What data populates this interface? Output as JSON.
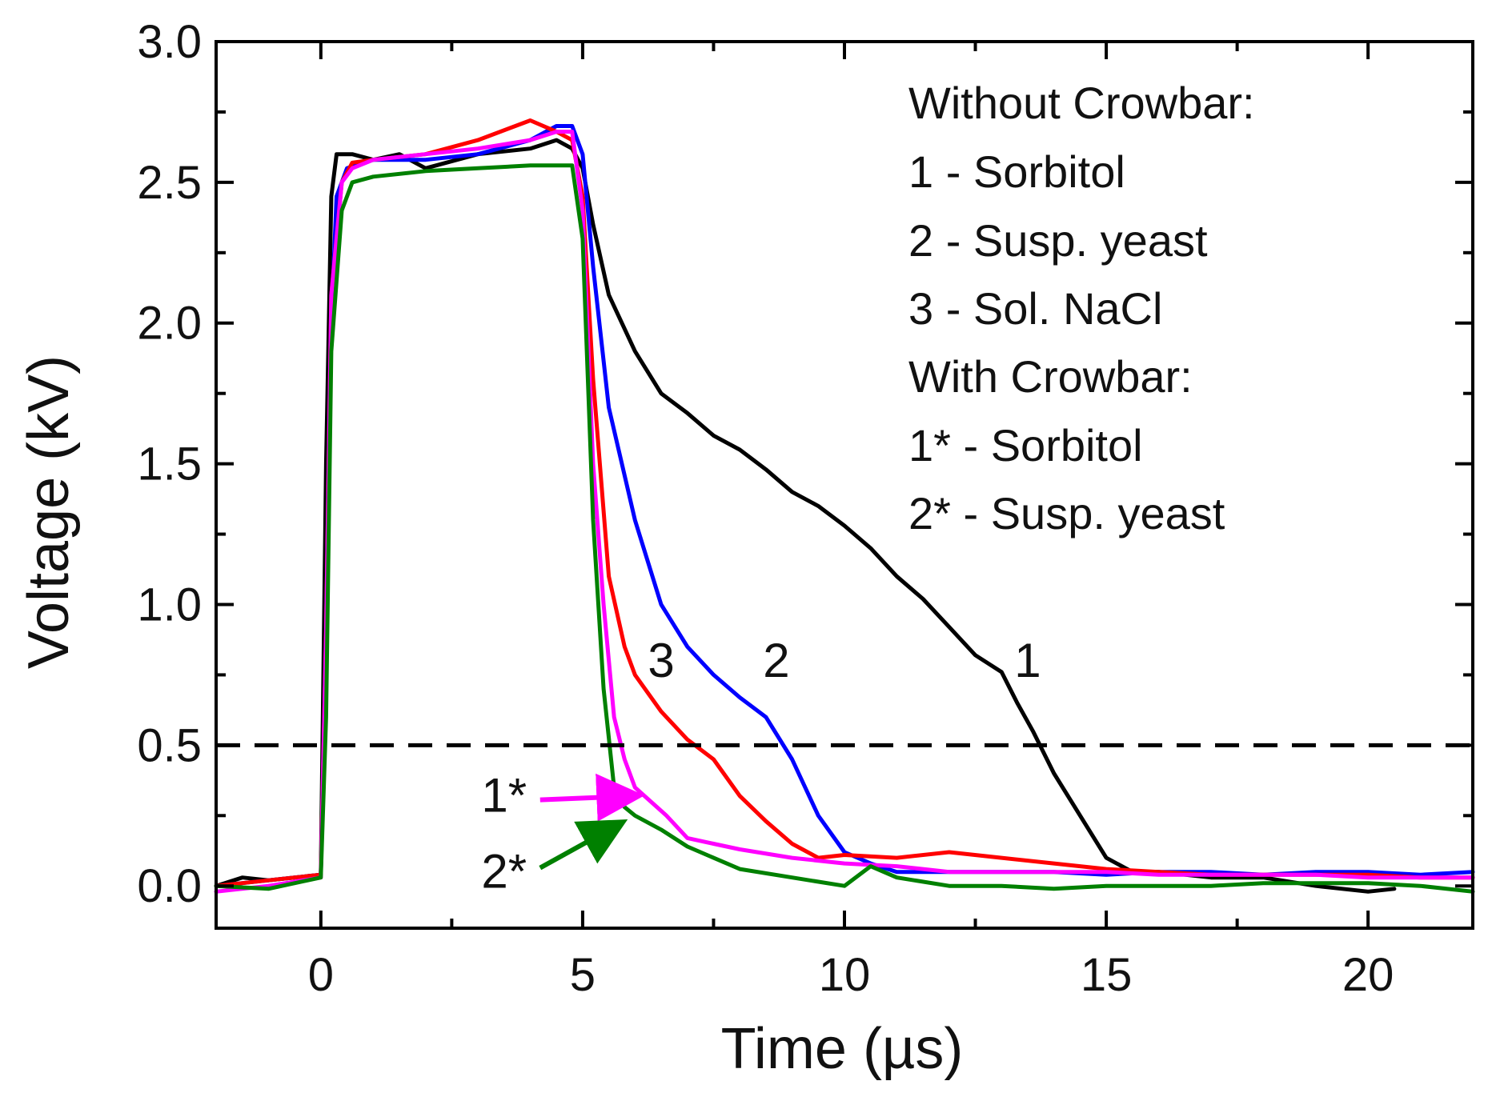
{
  "chart_data": {
    "type": "line",
    "title": "",
    "xlabel": "Time (µs)",
    "ylabel": "Voltage (kV)",
    "xlim": [
      -2,
      22
    ],
    "ylim": [
      -0.15,
      3.0
    ],
    "xticks": [
      0,
      5,
      10,
      15,
      20
    ],
    "xtick_labels": [
      "0",
      "5",
      "10",
      "15",
      "20"
    ],
    "yticks": [
      0.0,
      0.5,
      1.0,
      1.5,
      2.0,
      2.5,
      3.0
    ],
    "ytick_labels": [
      "0.0",
      "0.5",
      "1.0",
      "1.5",
      "2.0",
      "2.5",
      "3.0"
    ],
    "grid": false,
    "reference_line": {
      "y": 0.5,
      "style": "dashed",
      "color": "#000000"
    },
    "legend": {
      "placement": "top-right",
      "lines": [
        "Without Crowbar:",
        "1 - Sorbitol",
        "2 - Susp. yeast",
        "3 -  Sol. NaCl",
        "With Crowbar:",
        "1* - Sorbitol",
        "2* - Susp. yeast"
      ]
    },
    "series": [
      {
        "name": "1 - Sorbitol (without crowbar)",
        "color": "#000000",
        "x": [
          -2,
          -1.5,
          -1,
          -0.5,
          0,
          0.1,
          0.2,
          0.3,
          0.6,
          1,
          1.5,
          2,
          3,
          4,
          4.5,
          4.8,
          5,
          5.2,
          5.5,
          6,
          6.5,
          7,
          7.5,
          8,
          8.5,
          9,
          9.5,
          10,
          10.5,
          11,
          11.5,
          12,
          12.5,
          13,
          13.3,
          13.6,
          14,
          14.5,
          15,
          15.5,
          16,
          17,
          18,
          19,
          20,
          20.5
        ],
        "y": [
          0.0,
          0.03,
          0.02,
          0.03,
          0.04,
          1.5,
          2.45,
          2.6,
          2.6,
          2.58,
          2.6,
          2.55,
          2.6,
          2.62,
          2.65,
          2.62,
          2.55,
          2.35,
          2.1,
          1.9,
          1.75,
          1.68,
          1.6,
          1.55,
          1.48,
          1.4,
          1.35,
          1.28,
          1.2,
          1.1,
          1.02,
          0.92,
          0.82,
          0.76,
          0.65,
          0.55,
          0.4,
          0.25,
          0.1,
          0.05,
          0.05,
          0.03,
          0.03,
          0.0,
          -0.02,
          -0.01
        ]
      },
      {
        "name": "2 - Susp. yeast (without crowbar)",
        "color": "#0000ff",
        "x": [
          -2,
          -1,
          0,
          0.1,
          0.2,
          0.3,
          0.5,
          1,
          2,
          3,
          4,
          4.5,
          4.8,
          5,
          5.2,
          5.5,
          6,
          6.5,
          7,
          7.5,
          8,
          8.5,
          9,
          9.5,
          10,
          10.5,
          11,
          12,
          13,
          14,
          15,
          16,
          17,
          18,
          19,
          20,
          21,
          22
        ],
        "y": [
          0.0,
          0.02,
          0.04,
          0.8,
          2.0,
          2.45,
          2.55,
          2.58,
          2.58,
          2.6,
          2.65,
          2.7,
          2.7,
          2.6,
          2.2,
          1.7,
          1.3,
          1.0,
          0.85,
          0.75,
          0.67,
          0.6,
          0.45,
          0.25,
          0.12,
          0.08,
          0.05,
          0.05,
          0.05,
          0.05,
          0.04,
          0.05,
          0.05,
          0.04,
          0.05,
          0.05,
          0.04,
          0.05
        ]
      },
      {
        "name": "3 - Sol. NaCl (without crowbar)",
        "color": "#ff0000",
        "x": [
          -2,
          -1,
          0,
          0.1,
          0.2,
          0.4,
          0.6,
          1,
          2,
          3,
          4,
          4.5,
          4.8,
          5,
          5.2,
          5.5,
          5.8,
          6,
          6.5,
          7,
          7.5,
          8,
          8.5,
          9,
          9.5,
          10,
          11,
          12,
          13,
          14,
          15,
          16,
          17,
          18,
          19,
          20,
          21,
          22
        ],
        "y": [
          0.0,
          0.02,
          0.04,
          0.9,
          2.1,
          2.5,
          2.57,
          2.58,
          2.6,
          2.65,
          2.72,
          2.68,
          2.65,
          2.45,
          1.8,
          1.1,
          0.85,
          0.75,
          0.62,
          0.52,
          0.45,
          0.32,
          0.23,
          0.15,
          0.1,
          0.11,
          0.1,
          0.12,
          0.1,
          0.08,
          0.06,
          0.05,
          0.04,
          0.04,
          0.04,
          0.04,
          0.03,
          0.03
        ]
      },
      {
        "name": "1* - Sorbitol (with crowbar)",
        "color": "#ff00ff",
        "x": [
          -2,
          -1,
          0,
          0.1,
          0.2,
          0.4,
          0.6,
          1,
          2,
          3,
          4,
          4.5,
          4.8,
          5,
          5.2,
          5.4,
          5.6,
          5.8,
          6,
          6.3,
          6.6,
          7,
          7.5,
          8,
          9,
          10,
          11,
          12,
          13,
          14,
          15,
          16,
          17,
          18,
          19,
          20,
          21,
          22
        ],
        "y": [
          -0.02,
          0.0,
          0.03,
          0.9,
          2.1,
          2.5,
          2.55,
          2.58,
          2.6,
          2.62,
          2.65,
          2.68,
          2.68,
          2.4,
          1.5,
          1.0,
          0.6,
          0.45,
          0.35,
          0.3,
          0.25,
          0.17,
          0.15,
          0.13,
          0.1,
          0.08,
          0.07,
          0.05,
          0.05,
          0.05,
          0.05,
          0.04,
          0.04,
          0.04,
          0.04,
          0.03,
          0.03,
          0.03
        ]
      },
      {
        "name": "2* - Susp. yeast (with crowbar)",
        "color": "#008000",
        "x": [
          -2,
          -1,
          0,
          0.1,
          0.2,
          0.4,
          0.6,
          1,
          2,
          3,
          4,
          4.6,
          4.8,
          5,
          5.2,
          5.4,
          5.6,
          5.8,
          6,
          6.5,
          7,
          7.5,
          8,
          9,
          10,
          10.5,
          11,
          12,
          13,
          14,
          15,
          16,
          17,
          18,
          19,
          20,
          21,
          22
        ],
        "y": [
          0.0,
          -0.01,
          0.03,
          0.6,
          1.9,
          2.4,
          2.5,
          2.52,
          2.54,
          2.55,
          2.56,
          2.56,
          2.56,
          2.3,
          1.3,
          0.7,
          0.35,
          0.28,
          0.25,
          0.2,
          0.14,
          0.1,
          0.06,
          0.03,
          0.0,
          0.07,
          0.03,
          0.0,
          0.0,
          -0.01,
          0.0,
          0.0,
          0.0,
          0.01,
          0.01,
          0.01,
          0.0,
          -0.02
        ]
      }
    ],
    "annotations": [
      {
        "text": "1",
        "x": 13.5,
        "y": 0.8,
        "color": "#000000"
      },
      {
        "text": "2",
        "x": 8.7,
        "y": 0.8,
        "color": "#000000"
      },
      {
        "text": "3",
        "x": 6.5,
        "y": 0.8,
        "color": "#000000"
      },
      {
        "text": "1*",
        "x": 3.5,
        "y": 0.32,
        "color": "#000000",
        "arrow_to": [
          6.0,
          0.32
        ],
        "arrow_color": "#ff00ff"
      },
      {
        "text": "2*",
        "x": 3.5,
        "y": 0.05,
        "color": "#000000",
        "arrow_to": [
          5.7,
          0.22
        ],
        "arrow_color": "#008000"
      }
    ]
  }
}
